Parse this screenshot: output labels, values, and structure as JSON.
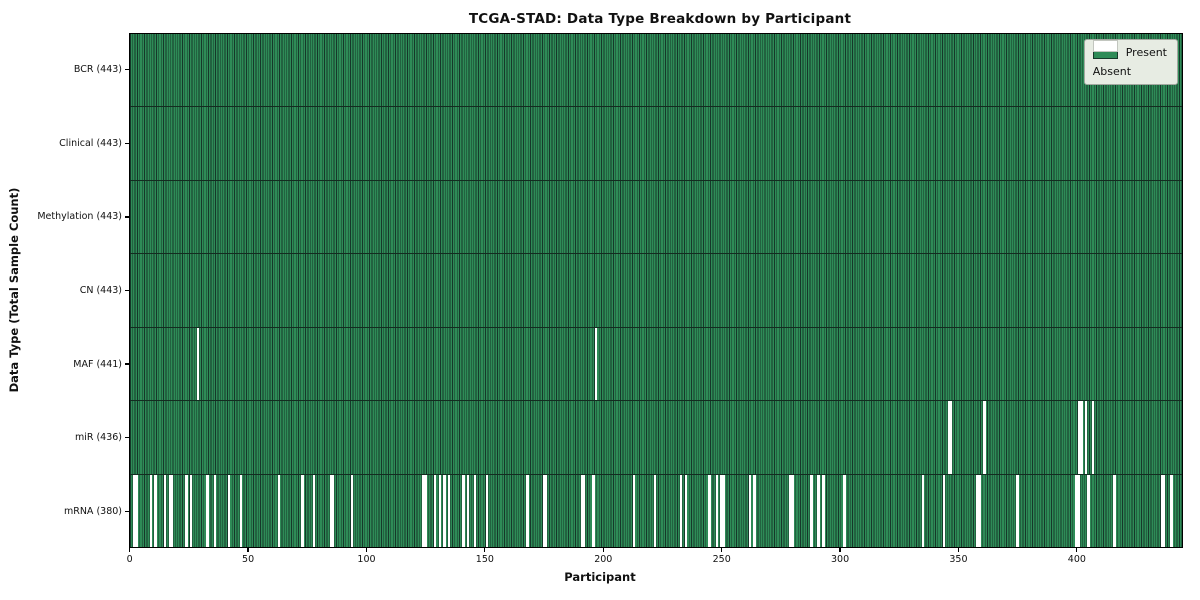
{
  "title": "TCGA-STAD: Data Type Breakdown by Participant",
  "xlabel": "Participant",
  "ylabel": "Data Type (Total Sample Count)",
  "legend": {
    "present": "Present",
    "absent": "Absent"
  },
  "colors": {
    "present_fill": "#2e8b57",
    "bar_edge": "#16382a",
    "absent_fill": "#ffffff",
    "row_divider": "#132c20",
    "legend_bg": "#e7ece3",
    "legend_border": "#a3a8a0",
    "spine": "#000000"
  },
  "chart_data": {
    "type": "heatmap",
    "title": "TCGA-STAD: Data Type Breakdown by Participant",
    "xlabel": "Participant",
    "ylabel": "Data Type (Total Sample Count)",
    "n_participants": 443,
    "x_ticks": [
      0,
      50,
      100,
      150,
      200,
      250,
      300,
      350,
      400
    ],
    "legend": {
      "present": "Present",
      "absent": "Absent"
    },
    "legend_position": "upper right",
    "grid": false,
    "rows": [
      {
        "name": "BCR",
        "label": "BCR (443)",
        "present_count": 443,
        "absent_participants": []
      },
      {
        "name": "Clinical",
        "label": "Clinical (443)",
        "present_count": 443,
        "absent_participants": []
      },
      {
        "name": "Methylation",
        "label": "Methylation (443)",
        "present_count": 443,
        "absent_participants": []
      },
      {
        "name": "CN",
        "label": "CN (443)",
        "present_count": 443,
        "absent_participants": []
      },
      {
        "name": "MAF",
        "label": "MAF (441)",
        "present_count": 441,
        "absent_participants": [
          28,
          196
        ]
      },
      {
        "name": "miR",
        "label": "miR (436)",
        "present_count": 436,
        "absent_participants": [
          345,
          346,
          360,
          400,
          401,
          403,
          406
        ]
      },
      {
        "name": "mRNA",
        "label": "mRNA (380)",
        "present_count": 380,
        "absent_participants": [
          1,
          2,
          8,
          10,
          14,
          16,
          17,
          23,
          25,
          32,
          35,
          41,
          46,
          62,
          72,
          77,
          84,
          85,
          93,
          123,
          124,
          128,
          130,
          132,
          134,
          140,
          142,
          145,
          150,
          167,
          174,
          175,
          190,
          191,
          195,
          212,
          221,
          232,
          234,
          244,
          247,
          249,
          250,
          261,
          263,
          278,
          279,
          287,
          290,
          292,
          301,
          334,
          343,
          357,
          358,
          374,
          399,
          400,
          404,
          415,
          435,
          436,
          439
        ]
      }
    ]
  }
}
